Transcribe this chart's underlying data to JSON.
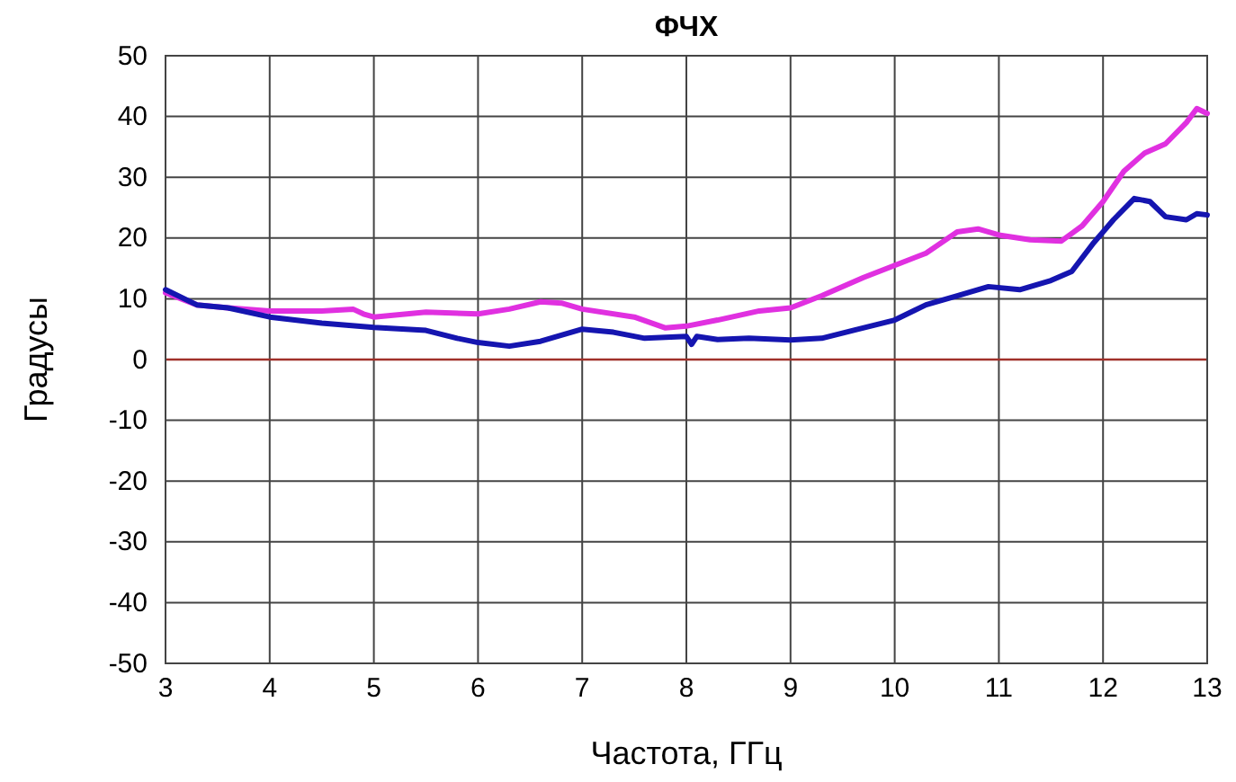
{
  "chart_data": {
    "type": "line",
    "title": "ФЧХ",
    "xlabel": "Частота, ГГц",
    "ylabel": "Градусы",
    "xlim": [
      3,
      13
    ],
    "xticks": [
      3,
      4,
      5,
      6,
      7,
      8,
      9,
      10,
      11,
      12,
      13
    ],
    "ylim": [
      -50,
      50
    ],
    "yticks": [
      -50,
      -40,
      -30,
      -20,
      -10,
      0,
      10,
      20,
      30,
      40,
      50
    ],
    "grid": true,
    "marker": "none",
    "line_style": "solid",
    "ref_lines": [
      {
        "axis": "y",
        "value": 0,
        "color": "#a0302a"
      }
    ],
    "series": [
      {
        "color": "#e030e0",
        "x": [
          3,
          3.3,
          3.6,
          4,
          4.5,
          4.8,
          4.9,
          5,
          5.5,
          6,
          6.3,
          6.6,
          6.8,
          7,
          7.5,
          7.8,
          8,
          8.3,
          8.7,
          9,
          9.3,
          9.7,
          10,
          10.3,
          10.6,
          10.8,
          11,
          11.3,
          11.6,
          11.8,
          12,
          12.2,
          12.4,
          12.6,
          12.8,
          12.9,
          13
        ],
        "values": [
          11,
          9,
          8.5,
          8,
          8,
          8.3,
          7.5,
          7,
          7.8,
          7.5,
          8.3,
          9.5,
          9.3,
          8.3,
          7,
          5.2,
          5.5,
          6.5,
          8,
          8.5,
          10.5,
          13.5,
          15.5,
          17.5,
          21,
          21.5,
          20.5,
          19.7,
          19.5,
          22,
          26,
          31,
          34,
          35.5,
          39,
          41.3,
          40.5
        ]
      },
      {
        "color": "#1515b0",
        "x": [
          3,
          3.3,
          3.6,
          4,
          4.5,
          5,
          5.5,
          5.8,
          6,
          6.3,
          6.6,
          7,
          7.3,
          7.6,
          8,
          8.05,
          8.1,
          8.3,
          8.6,
          9,
          9.3,
          9.6,
          10,
          10.3,
          10.6,
          10.9,
          11.2,
          11.5,
          11.7,
          11.9,
          12.1,
          12.3,
          12.45,
          12.6,
          12.8,
          12.9,
          13
        ],
        "values": [
          11.5,
          9,
          8.5,
          7,
          6,
          5.3,
          4.8,
          3.5,
          2.8,
          2.2,
          3,
          5,
          4.5,
          3.5,
          3.8,
          2.5,
          3.8,
          3.3,
          3.5,
          3.2,
          3.5,
          4.8,
          6.5,
          9,
          10.5,
          12,
          11.5,
          13,
          14.5,
          19,
          23,
          26.5,
          26,
          23.5,
          23,
          24,
          23.8
        ]
      }
    ]
  }
}
